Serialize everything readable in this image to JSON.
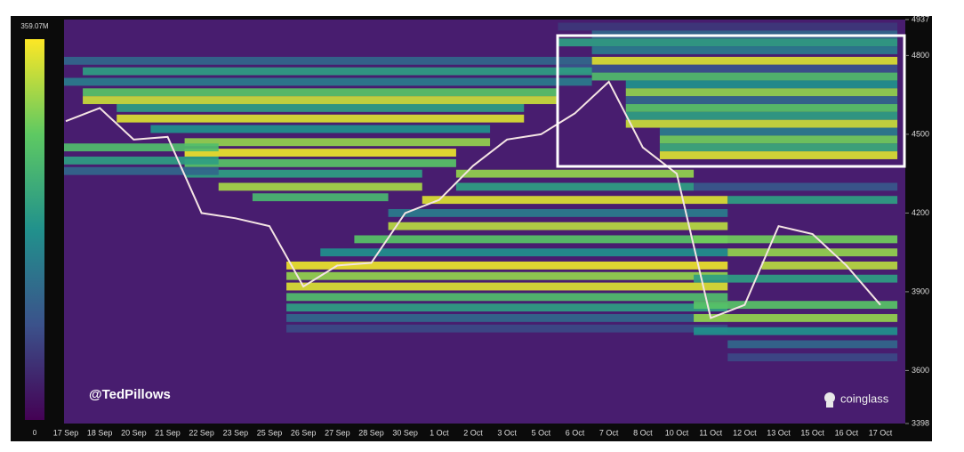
{
  "chart_data": {
    "type": "heatmap",
    "categories": [
      "17 Sep",
      "18 Sep",
      "20 Sep",
      "21 Sep",
      "22 Sep",
      "23 Sep",
      "25 Sep",
      "26 Sep",
      "27 Sep",
      "28 Sep",
      "30 Sep",
      "1 Oct",
      "2 Oct",
      "3 Oct",
      "5 Oct",
      "6 Oct",
      "7 Oct",
      "8 Oct",
      "10 Oct",
      "11 Oct",
      "12 Oct",
      "13 Oct",
      "15 Oct",
      "16 Oct",
      "17 Oct"
    ],
    "ylim": [
      3398,
      4937
    ],
    "yticks": [
      3398,
      3600,
      3900,
      4200,
      4500,
      4800,
      4937
    ],
    "zlim": [
      0,
      359.07
    ],
    "zticks": [
      0,
      {
        "value": 359.07,
        "label": "359.07M"
      }
    ],
    "colorscale": [
      "#440154",
      "#3b528b",
      "#21918c",
      "#5ec962",
      "#fde725"
    ],
    "background": "#481d6f",
    "price": {
      "color": "#f4e4e4",
      "values": [
        4550,
        4600,
        4480,
        4490,
        4200,
        4180,
        4150,
        3920,
        4000,
        4010,
        4200,
        4250,
        4380,
        4480,
        4500,
        4580,
        4700,
        4450,
        4350,
        3800,
        3850,
        4150,
        4120,
        4000,
        3850
      ]
    },
    "levels": [
      {
        "y": 4910,
        "z": 60,
        "from": "6 Oct",
        "to": "17 Oct"
      },
      {
        "y": 4880,
        "z": 120,
        "from": "7 Oct",
        "to": "17 Oct"
      },
      {
        "y": 4850,
        "z": 200,
        "from": "6 Oct",
        "to": "17 Oct"
      },
      {
        "y": 4820,
        "z": 150,
        "from": "7 Oct",
        "to": "17 Oct"
      },
      {
        "y": 4780,
        "z": 340,
        "from": "7 Oct",
        "to": "17 Oct"
      },
      {
        "y": 4750,
        "z": 90,
        "from": "6 Oct",
        "to": "17 Oct"
      },
      {
        "y": 4720,
        "z": 250,
        "from": "7 Oct",
        "to": "17 Oct"
      },
      {
        "y": 4690,
        "z": 180,
        "from": "8 Oct",
        "to": "17 Oct"
      },
      {
        "y": 4660,
        "z": 300,
        "from": "8 Oct",
        "to": "17 Oct"
      },
      {
        "y": 4630,
        "z": 120,
        "from": "8 Oct",
        "to": "17 Oct"
      },
      {
        "y": 4600,
        "z": 260,
        "from": "8 Oct",
        "to": "17 Oct"
      },
      {
        "y": 4570,
        "z": 200,
        "from": "8 Oct",
        "to": "17 Oct"
      },
      {
        "y": 4540,
        "z": 330,
        "from": "8 Oct",
        "to": "17 Oct"
      },
      {
        "y": 4510,
        "z": 150,
        "from": "10 Oct",
        "to": "17 Oct"
      },
      {
        "y": 4480,
        "z": 280,
        "from": "10 Oct",
        "to": "17 Oct"
      },
      {
        "y": 4450,
        "z": 220,
        "from": "10 Oct",
        "to": "17 Oct"
      },
      {
        "y": 4420,
        "z": 340,
        "from": "10 Oct",
        "to": "17 Oct"
      },
      {
        "y": 4780,
        "z": 120,
        "from": "17 Sep",
        "to": "6 Oct"
      },
      {
        "y": 4740,
        "z": 200,
        "from": "18 Sep",
        "to": "6 Oct"
      },
      {
        "y": 4700,
        "z": 150,
        "from": "17 Sep",
        "to": "6 Oct"
      },
      {
        "y": 4660,
        "z": 260,
        "from": "18 Sep",
        "to": "5 Oct"
      },
      {
        "y": 4630,
        "z": 330,
        "from": "18 Sep",
        "to": "5 Oct"
      },
      {
        "y": 4600,
        "z": 200,
        "from": "20 Sep",
        "to": "3 Oct"
      },
      {
        "y": 4560,
        "z": 340,
        "from": "20 Sep",
        "to": "3 Oct"
      },
      {
        "y": 4520,
        "z": 180,
        "from": "21 Sep",
        "to": "2 Oct"
      },
      {
        "y": 4470,
        "z": 300,
        "from": "22 Sep",
        "to": "2 Oct"
      },
      {
        "y": 4430,
        "z": 350,
        "from": "22 Sep",
        "to": "1 Oct"
      },
      {
        "y": 4390,
        "z": 260,
        "from": "22 Sep",
        "to": "1 Oct"
      },
      {
        "y": 4350,
        "z": 200,
        "from": "22 Sep",
        "to": "30 Sep"
      },
      {
        "y": 4300,
        "z": 310,
        "from": "23 Sep",
        "to": "30 Sep"
      },
      {
        "y": 4260,
        "z": 240,
        "from": "25 Sep",
        "to": "28 Sep"
      },
      {
        "y": 4450,
        "z": 250,
        "from": "17 Sep",
        "to": "22 Sep"
      },
      {
        "y": 4400,
        "z": 200,
        "from": "17 Sep",
        "to": "22 Sep"
      },
      {
        "y": 4360,
        "z": 120,
        "from": "17 Sep",
        "to": "22 Sep"
      },
      {
        "y": 4350,
        "z": 300,
        "from": "2 Oct",
        "to": "10 Oct"
      },
      {
        "y": 4300,
        "z": 200,
        "from": "2 Oct",
        "to": "10 Oct"
      },
      {
        "y": 4250,
        "z": 340,
        "from": "1 Oct",
        "to": "11 Oct"
      },
      {
        "y": 4200,
        "z": 150,
        "from": "30 Sep",
        "to": "11 Oct"
      },
      {
        "y": 4150,
        "z": 320,
        "from": "30 Sep",
        "to": "11 Oct"
      },
      {
        "y": 4100,
        "z": 260,
        "from": "28 Sep",
        "to": "11 Oct"
      },
      {
        "y": 4050,
        "z": 180,
        "from": "27 Sep",
        "to": "11 Oct"
      },
      {
        "y": 4000,
        "z": 350,
        "from": "26 Sep",
        "to": "11 Oct"
      },
      {
        "y": 3960,
        "z": 300,
        "from": "26 Sep",
        "to": "11 Oct"
      },
      {
        "y": 3920,
        "z": 340,
        "from": "26 Sep",
        "to": "11 Oct"
      },
      {
        "y": 3880,
        "z": 250,
        "from": "26 Sep",
        "to": "11 Oct"
      },
      {
        "y": 3840,
        "z": 200,
        "from": "26 Sep",
        "to": "11 Oct"
      },
      {
        "y": 3800,
        "z": 120,
        "from": "26 Sep",
        "to": "11 Oct"
      },
      {
        "y": 3760,
        "z": 80,
        "from": "26 Sep",
        "to": "11 Oct"
      },
      {
        "y": 4300,
        "z": 100,
        "from": "11 Oct",
        "to": "17 Oct"
      },
      {
        "y": 4250,
        "z": 200,
        "from": "12 Oct",
        "to": "17 Oct"
      },
      {
        "y": 4100,
        "z": 280,
        "from": "11 Oct",
        "to": "17 Oct"
      },
      {
        "y": 4050,
        "z": 300,
        "from": "12 Oct",
        "to": "17 Oct"
      },
      {
        "y": 4000,
        "z": 320,
        "from": "13 Oct",
        "to": "17 Oct"
      },
      {
        "y": 3950,
        "z": 200,
        "from": "11 Oct",
        "to": "17 Oct"
      },
      {
        "y": 3850,
        "z": 260,
        "from": "11 Oct",
        "to": "17 Oct"
      },
      {
        "y": 3800,
        "z": 300,
        "from": "11 Oct",
        "to": "17 Oct"
      },
      {
        "y": 3750,
        "z": 180,
        "from": "11 Oct",
        "to": "17 Oct"
      },
      {
        "y": 3700,
        "z": 120,
        "from": "12 Oct",
        "to": "17 Oct"
      },
      {
        "y": 3650,
        "z": 80,
        "from": "12 Oct",
        "to": "17 Oct"
      }
    ],
    "annotations": [
      "@TedPillows",
      "coinglass"
    ]
  }
}
